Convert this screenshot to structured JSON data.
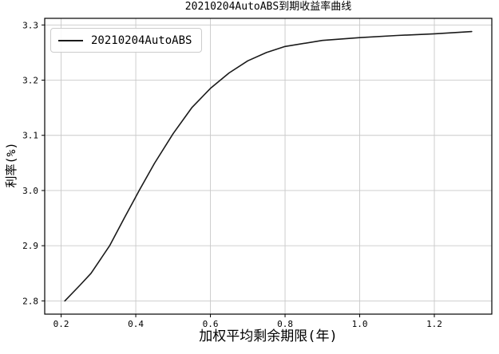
{
  "chart_data": {
    "type": "line",
    "title": "20210204AutoABS到期收益率曲线",
    "xlabel": "加权平均剩余期限(年)",
    "ylabel": "利率(%)",
    "grid": true,
    "xlim": [
      0.156,
      1.354
    ],
    "ylim": [
      2.776,
      3.312
    ],
    "xticks": {
      "values": [
        0.2,
        0.4,
        0.6,
        0.8,
        1.0,
        1.2
      ],
      "labels": [
        "0.2",
        "0.4",
        "0.6",
        "0.8",
        "1.0",
        "1.2"
      ]
    },
    "yticks": {
      "values": [
        2.8,
        2.9,
        3.0,
        3.1,
        3.2,
        3.3
      ],
      "labels": [
        "2.8",
        "2.9",
        "3.0",
        "3.1",
        "3.2",
        "3.3"
      ]
    },
    "legend": {
      "position": "upper-left",
      "entries": [
        {
          "label": "20210204AutoABS",
          "color": "#1a1a1a"
        }
      ]
    },
    "series": [
      {
        "name": "20210204AutoABS",
        "color": "#1a1a1a",
        "line_width": 1.6,
        "points": [
          [
            0.21,
            2.8
          ],
          [
            0.25,
            2.828
          ],
          [
            0.28,
            2.85
          ],
          [
            0.33,
            2.9
          ],
          [
            0.37,
            2.951
          ],
          [
            0.41,
            3.001
          ],
          [
            0.45,
            3.049
          ],
          [
            0.5,
            3.103
          ],
          [
            0.55,
            3.15
          ],
          [
            0.6,
            3.185
          ],
          [
            0.65,
            3.213
          ],
          [
            0.7,
            3.235
          ],
          [
            0.75,
            3.25
          ],
          [
            0.8,
            3.261
          ],
          [
            0.9,
            3.272
          ],
          [
            1.0,
            3.277
          ],
          [
            1.1,
            3.281
          ],
          [
            1.2,
            3.284
          ],
          [
            1.3,
            3.288
          ]
        ]
      }
    ],
    "colors": {
      "background": "#ffffff",
      "grid": "#c9c9c9",
      "spine": "#000000",
      "legend_border": "#cccccc"
    }
  }
}
